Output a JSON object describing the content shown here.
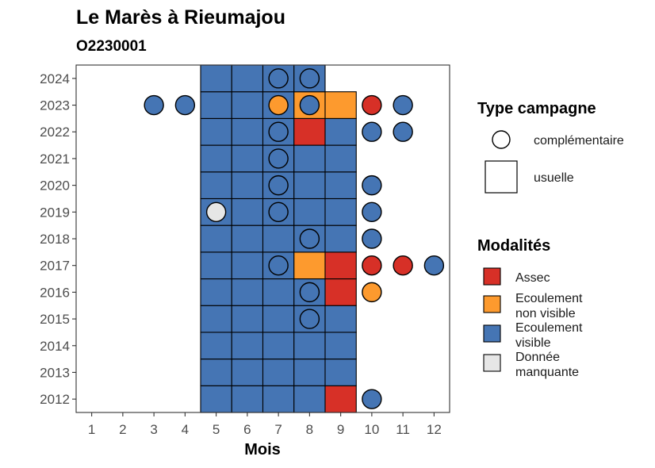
{
  "title": "Le Marès à Rieumajou",
  "subtitle": "O2230001",
  "chart_data": {
    "type": "heatmap",
    "xlabel": "Mois",
    "ylabel": "",
    "x_ticks": [
      1,
      2,
      3,
      4,
      5,
      6,
      7,
      8,
      9,
      10,
      11,
      12
    ],
    "y_ticks": [
      2012,
      2013,
      2014,
      2015,
      2016,
      2017,
      2018,
      2019,
      2020,
      2021,
      2022,
      2023,
      2024
    ],
    "xlim": [
      0.5,
      12.5
    ],
    "ylim": [
      2011.5,
      2024.5
    ],
    "colors": {
      "Assec": "#d73027",
      "Ecoulement non visible": "#fd9a2e",
      "Ecoulement visible": "#4575b4",
      "Donnée manquante": "#e6e6e6"
    },
    "usuelle": [
      {
        "year": 2012,
        "values": {
          "5": "Ecoulement visible",
          "6": "Ecoulement visible",
          "7": "Ecoulement visible",
          "8": "Ecoulement visible",
          "9": "Assec"
        }
      },
      {
        "year": 2013,
        "values": {
          "5": "Ecoulement visible",
          "6": "Ecoulement visible",
          "7": "Ecoulement visible",
          "8": "Ecoulement visible",
          "9": "Ecoulement visible"
        }
      },
      {
        "year": 2014,
        "values": {
          "5": "Ecoulement visible",
          "6": "Ecoulement visible",
          "7": "Ecoulement visible",
          "8": "Ecoulement visible",
          "9": "Ecoulement visible"
        }
      },
      {
        "year": 2015,
        "values": {
          "5": "Ecoulement visible",
          "6": "Ecoulement visible",
          "7": "Ecoulement visible",
          "8": "Ecoulement visible",
          "9": "Ecoulement visible"
        }
      },
      {
        "year": 2016,
        "values": {
          "5": "Ecoulement visible",
          "6": "Ecoulement visible",
          "7": "Ecoulement visible",
          "8": "Ecoulement visible",
          "9": "Assec"
        }
      },
      {
        "year": 2017,
        "values": {
          "5": "Ecoulement visible",
          "6": "Ecoulement visible",
          "7": "Ecoulement visible",
          "8": "Ecoulement non visible",
          "9": "Assec"
        }
      },
      {
        "year": 2018,
        "values": {
          "5": "Ecoulement visible",
          "6": "Ecoulement visible",
          "7": "Ecoulement visible",
          "8": "Ecoulement visible",
          "9": "Ecoulement visible"
        }
      },
      {
        "year": 2019,
        "values": {
          "5": "Ecoulement visible",
          "6": "Ecoulement visible",
          "7": "Ecoulement visible",
          "8": "Ecoulement visible",
          "9": "Ecoulement visible"
        }
      },
      {
        "year": 2020,
        "values": {
          "5": "Ecoulement visible",
          "6": "Ecoulement visible",
          "7": "Ecoulement visible",
          "8": "Ecoulement visible",
          "9": "Ecoulement visible"
        }
      },
      {
        "year": 2021,
        "values": {
          "5": "Ecoulement visible",
          "6": "Ecoulement visible",
          "7": "Ecoulement visible",
          "8": "Ecoulement visible",
          "9": "Ecoulement visible"
        }
      },
      {
        "year": 2022,
        "values": {
          "5": "Ecoulement visible",
          "6": "Ecoulement visible",
          "7": "Ecoulement visible",
          "8": "Assec",
          "9": "Ecoulement visible"
        }
      },
      {
        "year": 2023,
        "values": {
          "5": "Ecoulement visible",
          "6": "Ecoulement visible",
          "7": "Ecoulement visible",
          "8": "Ecoulement non visible",
          "9": "Ecoulement non visible"
        }
      },
      {
        "year": 2024,
        "values": {
          "5": "Ecoulement visible",
          "6": "Ecoulement visible",
          "7": "Ecoulement visible",
          "8": "Ecoulement visible"
        }
      }
    ],
    "complementaire": [
      {
        "year": 2024,
        "month": 7,
        "modalite": "Ecoulement visible"
      },
      {
        "year": 2024,
        "month": 8,
        "modalite": "Ecoulement visible"
      },
      {
        "year": 2023,
        "month": 3,
        "modalite": "Ecoulement visible"
      },
      {
        "year": 2023,
        "month": 4,
        "modalite": "Ecoulement visible"
      },
      {
        "year": 2023,
        "month": 7,
        "modalite": "Ecoulement non visible"
      },
      {
        "year": 2023,
        "month": 8,
        "modalite": "Ecoulement visible"
      },
      {
        "year": 2023,
        "month": 10,
        "modalite": "Assec"
      },
      {
        "year": 2023,
        "month": 11,
        "modalite": "Ecoulement visible"
      },
      {
        "year": 2022,
        "month": 7,
        "modalite": "Ecoulement visible"
      },
      {
        "year": 2022,
        "month": 10,
        "modalite": "Ecoulement visible"
      },
      {
        "year": 2022,
        "month": 11,
        "modalite": "Ecoulement visible"
      },
      {
        "year": 2021,
        "month": 7,
        "modalite": "Ecoulement visible"
      },
      {
        "year": 2020,
        "month": 7,
        "modalite": "Ecoulement visible"
      },
      {
        "year": 2020,
        "month": 10,
        "modalite": "Ecoulement visible"
      },
      {
        "year": 2019,
        "month": 5,
        "modalite": "Donnée manquante"
      },
      {
        "year": 2019,
        "month": 7,
        "modalite": "Ecoulement visible"
      },
      {
        "year": 2019,
        "month": 10,
        "modalite": "Ecoulement visible"
      },
      {
        "year": 2018,
        "month": 8,
        "modalite": "Ecoulement visible"
      },
      {
        "year": 2018,
        "month": 10,
        "modalite": "Ecoulement visible"
      },
      {
        "year": 2017,
        "month": 7,
        "modalite": "Ecoulement visible"
      },
      {
        "year": 2017,
        "month": 10,
        "modalite": "Assec"
      },
      {
        "year": 2017,
        "month": 11,
        "modalite": "Assec"
      },
      {
        "year": 2017,
        "month": 12,
        "modalite": "Ecoulement visible"
      },
      {
        "year": 2016,
        "month": 8,
        "modalite": "Ecoulement visible"
      },
      {
        "year": 2016,
        "month": 10,
        "modalite": "Ecoulement non visible"
      },
      {
        "year": 2015,
        "month": 8,
        "modalite": "Ecoulement visible"
      },
      {
        "year": 2012,
        "month": 10,
        "modalite": "Ecoulement visible"
      }
    ],
    "legend": {
      "position": "right",
      "type_title": "Type campagne",
      "type_items": [
        {
          "shape": "circle",
          "label": "complémentaire"
        },
        {
          "shape": "square",
          "label": "usuelle"
        }
      ],
      "modalites_title": "Modalités",
      "modalites_items": [
        {
          "key": "Assec",
          "lines": [
            "Assec"
          ]
        },
        {
          "key": "Ecoulement non visible",
          "lines": [
            "Ecoulement",
            "non visible"
          ]
        },
        {
          "key": "Ecoulement visible",
          "lines": [
            "Ecoulement",
            "visible"
          ]
        },
        {
          "key": "Donnée manquante",
          "lines": [
            "Donnée",
            "manquante"
          ]
        }
      ]
    }
  }
}
